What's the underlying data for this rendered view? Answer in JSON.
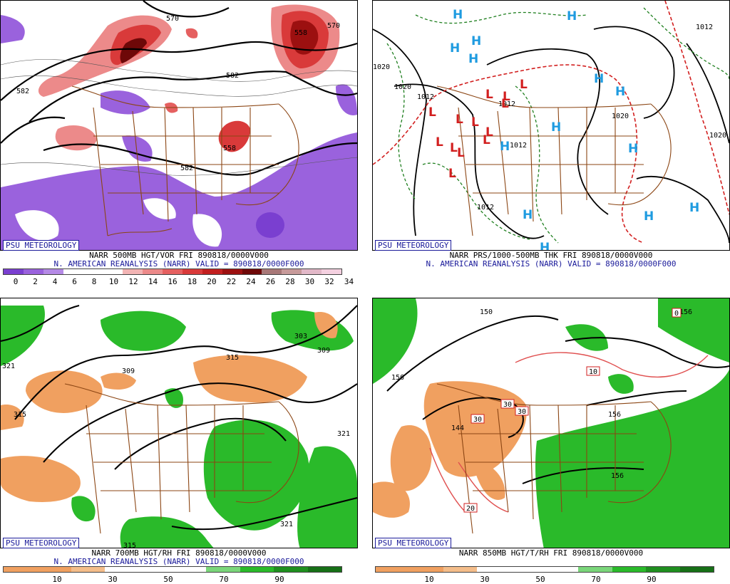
{
  "badge": "PSU METEOROLOGY",
  "panels": {
    "p1": {
      "caption1": "NARR 500MB HGT/VOR FRI 890818/0000V000",
      "caption2": "N. AMERICAN REANALYSIS (NARR) VALID = 890818/0000F000",
      "contour_labels": [
        "570",
        "582",
        "582",
        "582",
        "558",
        "558",
        "570"
      ],
      "colorbar_ticks": [
        "0",
        "2",
        "4",
        "6",
        "8",
        "10",
        "12",
        "14",
        "16",
        "18",
        "20",
        "22",
        "24",
        "26",
        "28",
        "30",
        "32",
        "34"
      ],
      "colorbar_colors": [
        "#7a3fd0",
        "#9a62dd",
        "#b58ae6",
        "#ffffff",
        "#ffffff",
        "#ffffff",
        "#f2b4b4",
        "#ec8a8a",
        "#e56060",
        "#d93a3a",
        "#c21f1f",
        "#9c1010",
        "#6e0808",
        "#a87878",
        "#c79a9a",
        "#e2b8c8",
        "#f4d0e0"
      ]
    },
    "p2": {
      "caption1": "NARR PRS/1000-500MB THK FRI 890818/0000V000",
      "caption2": "N. AMERICAN REANALYSIS (NARR) VALID = 890818/0000F000",
      "contour_labels": [
        "1020",
        "1012",
        "1020",
        "1012",
        "1012",
        "1020",
        "1012",
        "1020",
        "1012"
      ],
      "high_letter": "H",
      "low_letter": "L"
    },
    "p3": {
      "caption1": "NARR 700MB HGT/RH FRI 890818/0000V000",
      "caption2": "N. AMERICAN REANALYSIS (NARR) VALID = 890818/0000F000",
      "contour_labels": [
        "321",
        "315",
        "309",
        "315",
        "303",
        "309",
        "321",
        "321",
        "315"
      ],
      "colorbar_ticks": [
        "10",
        "30",
        "50",
        "70",
        "90"
      ],
      "colorbar_colors": [
        "#f0a060",
        "#f0a060",
        "#f4bd8a",
        "#ffffff",
        "#ffffff",
        "#ffffff",
        "#7ad67a",
        "#2aba2a",
        "#1f8f1f",
        "#177017"
      ]
    },
    "p4": {
      "caption1": "NARR 850MB HGT/T/RH FRI 890818/0000V000",
      "caption2": "",
      "contour_labels": [
        "150",
        "156",
        "156",
        "156",
        "144",
        "156"
      ],
      "boxed_labels": [
        "10",
        "30",
        "30",
        "30",
        "20",
        "0"
      ],
      "colorbar_ticks": [
        "10",
        "30",
        "50",
        "70",
        "90"
      ],
      "colorbar_colors": [
        "#f0a060",
        "#f0a060",
        "#f4bd8a",
        "#ffffff",
        "#ffffff",
        "#ffffff",
        "#7ad67a",
        "#2aba2a",
        "#1f8f1f",
        "#177017"
      ]
    }
  }
}
